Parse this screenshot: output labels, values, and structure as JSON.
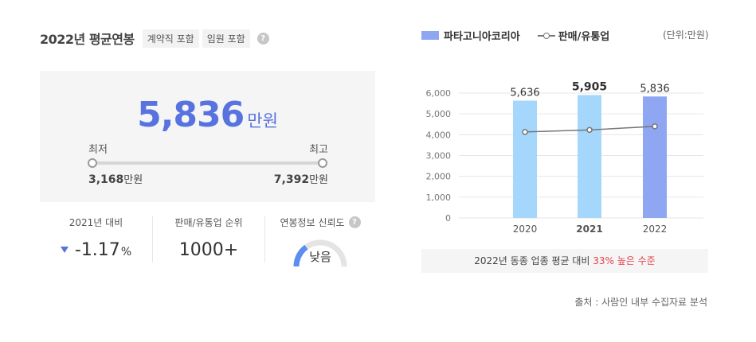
{
  "header": {
    "title": "2022년 평균연봉",
    "tags": [
      "계약직 포함",
      "임원 포함"
    ],
    "help_icon": "question-icon"
  },
  "salary": {
    "average": "5,836",
    "unit": "만원",
    "min_label": "최저",
    "max_label": "최고",
    "min_value": "3,168",
    "max_value": "7,392",
    "value_unit": "만원"
  },
  "stats": {
    "yoy_label": "2021년 대비",
    "yoy_value": "-1.17",
    "yoy_unit": "%",
    "rank_label": "판매/유통업 순위",
    "rank_value": "1000+",
    "reliability_label": "연봉정보 신뢰도",
    "reliability_value": "낮음",
    "reliability_level": 0.3
  },
  "legend": {
    "company": "파타고니아코리아",
    "industry": "판매/유통업",
    "unit": "(단위:만원)"
  },
  "chart_data": {
    "type": "bar",
    "categories": [
      "2020",
      "2021",
      "2022"
    ],
    "series": [
      {
        "name": "파타고니아코리아",
        "values": [
          5636,
          5905,
          5836
        ],
        "labels": [
          "5,636",
          "5,905",
          "5,836"
        ]
      },
      {
        "name": "판매/유통업",
        "type": "line",
        "values": [
          4130,
          4230,
          4400
        ]
      }
    ],
    "ylim": [
      0,
      6000
    ],
    "yticks": [
      "0",
      "1,000",
      "2,000",
      "3,000",
      "4,000",
      "5,000",
      "6,000"
    ],
    "bold_category": "2021",
    "colors": {
      "bar": "#a5d6fb",
      "bar_current": "#8fa6f3",
      "line": "#777777",
      "grid": "#e6e6e6"
    }
  },
  "footer": {
    "summary_prefix": "2022년 동종 업종 평균 대비",
    "summary_highlight": "33% 높은 수준",
    "source": "출처 : 사람인 내부 수집자료 분석"
  }
}
